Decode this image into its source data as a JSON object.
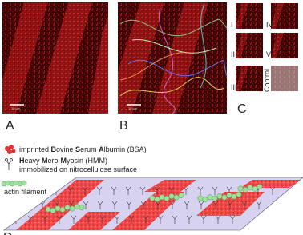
{
  "panels": {
    "a": {
      "label": "A",
      "scale_bar": "10 µm"
    },
    "b": {
      "label": "B",
      "scale_bar": "10 µm"
    },
    "c": {
      "label": "C",
      "images": [
        "I",
        "II",
        "III",
        "IV",
        "V",
        "Control"
      ]
    }
  },
  "legend": [
    {
      "lines": [
        [
          {
            "text": "imprinted ",
            "bold": false
          },
          {
            "text": "B",
            "bold": true
          },
          {
            "text": "ovine ",
            "bold": false
          },
          {
            "text": "S",
            "bold": true
          },
          {
            "text": "erum ",
            "bold": false
          },
          {
            "text": "A",
            "bold": true
          },
          {
            "text": "lbumin (BSA)",
            "bold": false
          }
        ]
      ]
    },
    {
      "lines": [
        [
          {
            "text": "H",
            "bold": true
          },
          {
            "text": "eavy ",
            "bold": false
          },
          {
            "text": "M",
            "bold": true
          },
          {
            "text": "ero-",
            "bold": false
          },
          {
            "text": "M",
            "bold": true
          },
          {
            "text": "yosin (HMM)",
            "bold": false
          }
        ],
        [
          {
            "text": "immobilized on nitrocellulose surface",
            "bold": false
          }
        ]
      ]
    },
    {
      "lines": [
        [
          {
            "text": "actin filament",
            "bold": false
          }
        ]
      ]
    }
  ],
  "d_label": "D"
}
